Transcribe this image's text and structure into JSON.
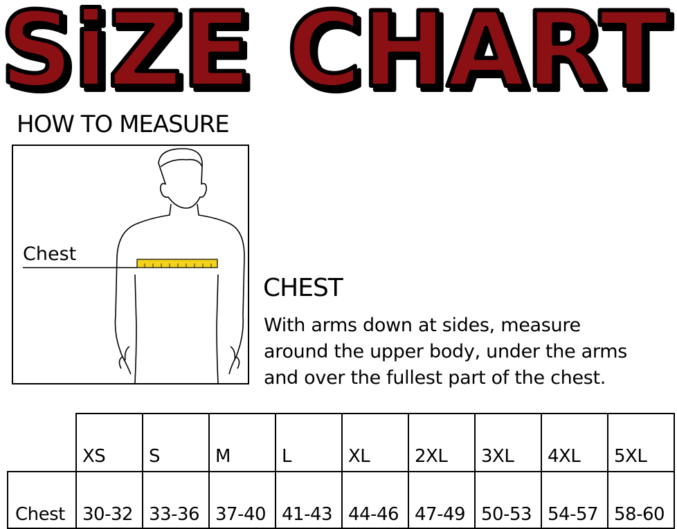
{
  "title": "SiZE CHART",
  "colors": {
    "title_fill": "#8b1014",
    "title_outline": "#000000",
    "tape": "#f2d21b"
  },
  "how_to_measure": {
    "heading": "HOW TO MEASURE",
    "figure_label": "Chest"
  },
  "instructions": {
    "heading": "CHEST",
    "lines": [
      "With arms down at sides, measure",
      "around the upper body, under the arms",
      "and over the fullest part of the chest."
    ]
  },
  "table": {
    "sizes": [
      "XS",
      "S",
      "M",
      "L",
      "XL",
      "2XL",
      "3XL",
      "4XL",
      "5XL"
    ],
    "rows": [
      {
        "label": "Chest",
        "values": [
          "30-32",
          "33-36",
          "37-40",
          "41-43",
          "44-46",
          "47-49",
          "50-53",
          "54-57",
          "58-60"
        ]
      }
    ]
  }
}
